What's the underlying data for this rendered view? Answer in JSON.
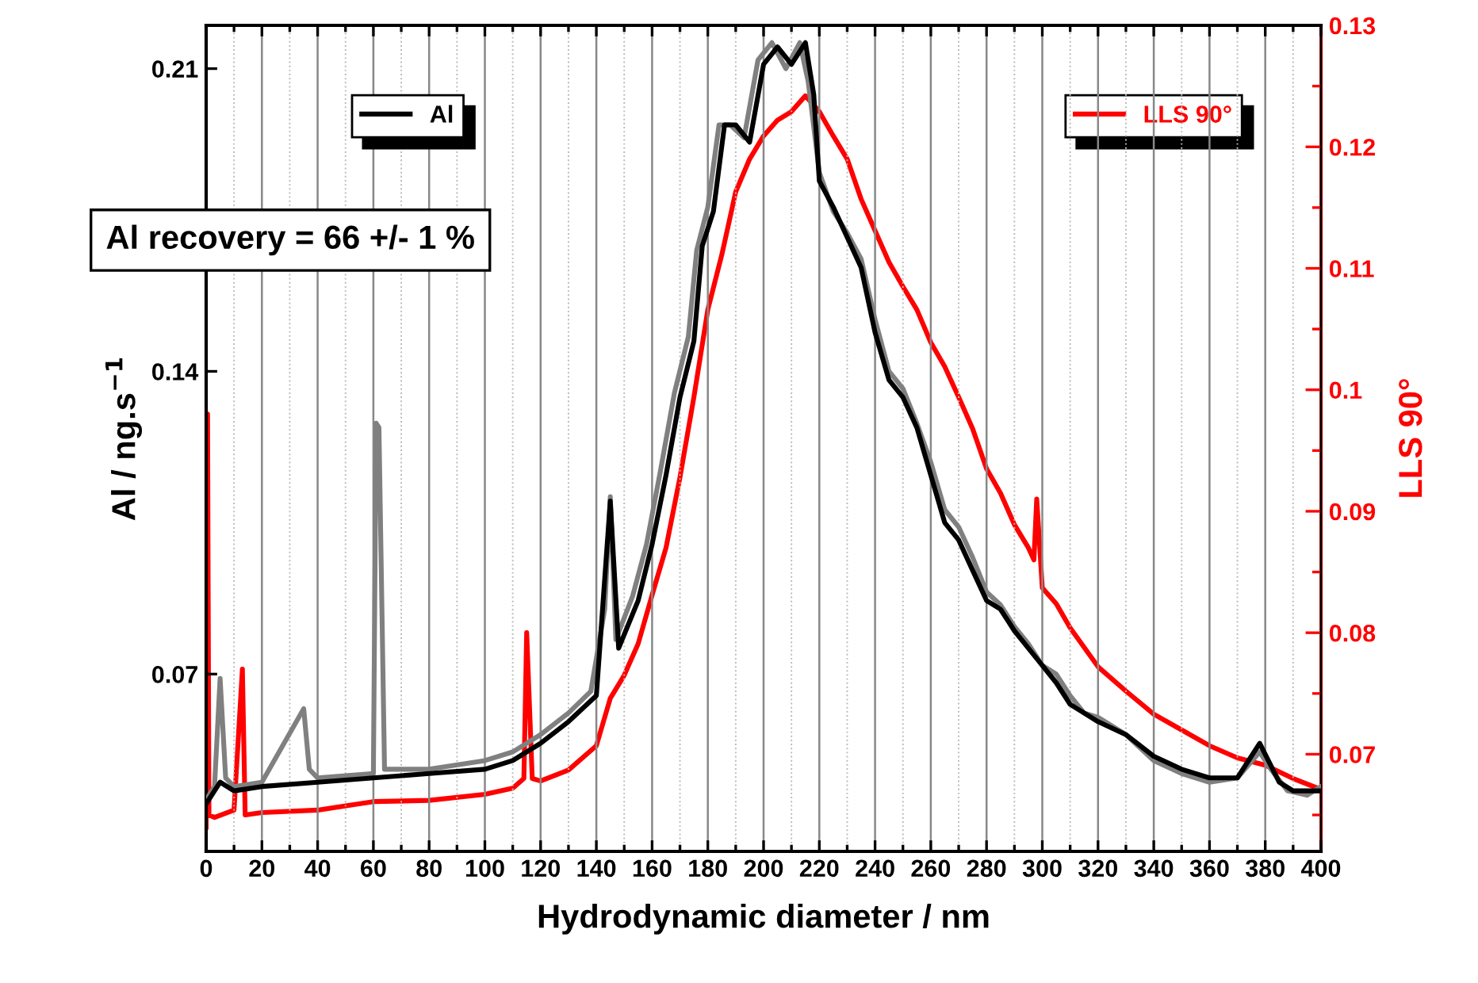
{
  "chart_data": {
    "type": "line",
    "xlabel": "Hydrodynamic diameter / nm",
    "ylabel": "Al / ng.s$^{−1}$",
    "y2label": "LLS 90°",
    "xlim": [
      0,
      400
    ],
    "ylim": [
      0.029,
      0.22
    ],
    "y2lim": [
      0.062,
      0.13
    ],
    "xticks": [
      0,
      {
        "value": 10,
        "label": null
      },
      20,
      {
        "value": 30,
        "label": null
      },
      40,
      {
        "value": 50,
        "label": null
      },
      60,
      {
        "value": 70,
        "label": null
      },
      80,
      {
        "value": 90,
        "label": null
      },
      100,
      {
        "value": 110,
        "label": null
      },
      120,
      {
        "value": 130,
        "label": null
      },
      140,
      {
        "value": 150,
        "label": null
      },
      160,
      {
        "value": 170,
        "label": null
      },
      180,
      {
        "value": 190,
        "label": null
      },
      200,
      {
        "value": 210,
        "label": null
      },
      220,
      {
        "value": 230,
        "label": null
      },
      240,
      {
        "value": 250,
        "label": null
      },
      260,
      {
        "value": 270,
        "label": null
      },
      280,
      {
        "value": 290,
        "label": null
      },
      300,
      {
        "value": 310,
        "label": null
      },
      320,
      {
        "value": 330,
        "label": null
      },
      340,
      {
        "value": 350,
        "label": null
      },
      360,
      {
        "value": 370,
        "label": null
      },
      380,
      {
        "value": 390,
        "label": null
      },
      400
    ],
    "yticks": [
      0.07,
      0.14,
      0.21
    ],
    "y2ticks": [
      {
        "value": 0.065,
        "label": null
      },
      0.07,
      {
        "value": 0.075,
        "label": null
      },
      0.08,
      {
        "value": 0.085,
        "label": null
      },
      0.09,
      {
        "value": 0.095,
        "label": null
      },
      0.1,
      {
        "value": 0.105,
        "label": null
      },
      0.11,
      {
        "value": 0.115,
        "label": null
      },
      0.12,
      {
        "value": 0.125,
        "label": null
      },
      0.13
    ],
    "grid": "x",
    "legend": "top",
    "line_style": "solid",
    "marker": "none",
    "annotations": [
      "Al recovery = 66 +/- 1 %"
    ],
    "series": [
      {
        "color": "#808080",
        "x": [
          0,
          3,
          5,
          7,
          10,
          20,
          35,
          37,
          40,
          60,
          61,
          62,
          64,
          80,
          100,
          110,
          120,
          130,
          138,
          143,
          145,
          147,
          153,
          158,
          163,
          168,
          173,
          176,
          180,
          184,
          188,
          193,
          198,
          203,
          208,
          213,
          216,
          220,
          225,
          230,
          235,
          240,
          245,
          250,
          255,
          260,
          265,
          270,
          275,
          280,
          285,
          290,
          295,
          300,
          305,
          310,
          315,
          320,
          330,
          340,
          350,
          360,
          370,
          378,
          382,
          388,
          395,
          400
        ],
        "values": [
          0.041,
          0.044,
          0.069,
          0.046,
          0.044,
          0.045,
          0.062,
          0.048,
          0.046,
          0.047,
          0.128,
          0.127,
          0.048,
          0.048,
          0.05,
          0.052,
          0.056,
          0.061,
          0.066,
          0.085,
          0.111,
          0.078,
          0.088,
          0.1,
          0.117,
          0.135,
          0.148,
          0.168,
          0.178,
          0.197,
          0.197,
          0.194,
          0.212,
          0.216,
          0.21,
          0.216,
          0.207,
          0.186,
          0.177,
          0.172,
          0.166,
          0.152,
          0.14,
          0.136,
          0.128,
          0.119,
          0.108,
          0.104,
          0.097,
          0.089,
          0.086,
          0.081,
          0.077,
          0.072,
          0.07,
          0.065,
          0.061,
          0.06,
          0.056,
          0.05,
          0.047,
          0.045,
          0.046,
          0.052,
          0.048,
          0.043,
          0.042,
          0.044
        ]
      },
      {
        "name": "Al",
        "color": "#000000",
        "x": [
          0,
          5,
          10,
          20,
          40,
          60,
          80,
          100,
          110,
          120,
          130,
          140,
          145,
          148,
          155,
          160,
          165,
          170,
          175,
          178,
          182,
          186,
          190,
          195,
          200,
          205,
          210,
          215,
          218,
          220,
          225,
          230,
          235,
          240,
          245,
          250,
          255,
          260,
          265,
          270,
          275,
          280,
          285,
          290,
          295,
          300,
          305,
          310,
          320,
          330,
          340,
          350,
          360,
          370,
          378,
          385,
          390,
          400
        ],
        "values": [
          0.04,
          0.045,
          0.043,
          0.044,
          0.045,
          0.046,
          0.047,
          0.048,
          0.05,
          0.054,
          0.059,
          0.065,
          0.11,
          0.076,
          0.087,
          0.1,
          0.116,
          0.134,
          0.147,
          0.169,
          0.177,
          0.197,
          0.197,
          0.193,
          0.211,
          0.215,
          0.211,
          0.216,
          0.204,
          0.184,
          0.178,
          0.171,
          0.164,
          0.149,
          0.138,
          0.134,
          0.127,
          0.116,
          0.105,
          0.101,
          0.094,
          0.087,
          0.085,
          0.08,
          0.076,
          0.072,
          0.068,
          0.063,
          0.059,
          0.056,
          0.051,
          0.048,
          0.046,
          0.046,
          0.054,
          0.045,
          0.043,
          0.043
        ]
      },
      {
        "name": "LLS 90°",
        "color": "#ff0000",
        "axis": "y2",
        "x": [
          0,
          0.5,
          1,
          3,
          10,
          13,
          14,
          20,
          40,
          60,
          80,
          100,
          110,
          114,
          115,
          117,
          120,
          130,
          140,
          145,
          150,
          155,
          160,
          165,
          170,
          175,
          180,
          185,
          190,
          195,
          200,
          205,
          210,
          215,
          220,
          225,
          230,
          235,
          240,
          245,
          250,
          255,
          260,
          265,
          270,
          275,
          280,
          285,
          290,
          295,
          297,
          298,
          300,
          305,
          310,
          320,
          330,
          340,
          350,
          360,
          370,
          380,
          390,
          400
        ],
        "values": [
          0.064,
          0.098,
          0.065,
          0.0648,
          0.0654,
          0.077,
          0.065,
          0.0652,
          0.0654,
          0.0661,
          0.0662,
          0.0667,
          0.0672,
          0.068,
          0.08,
          0.068,
          0.0678,
          0.0687,
          0.0707,
          0.0746,
          0.0765,
          0.0791,
          0.0831,
          0.087,
          0.0928,
          0.0994,
          0.1066,
          0.1111,
          0.1163,
          0.119,
          0.1209,
          0.1222,
          0.1229,
          0.1242,
          0.1229,
          0.1209,
          0.119,
          0.1157,
          0.1131,
          0.1105,
          0.1085,
          0.1066,
          0.1039,
          0.1019,
          0.0994,
          0.0968,
          0.0935,
          0.0915,
          0.0889,
          0.087,
          0.086,
          0.091,
          0.0837,
          0.0824,
          0.0804,
          0.0772,
          0.0752,
          0.0733,
          0.072,
          0.0707,
          0.0697,
          0.0691,
          0.068,
          0.0671
        ]
      }
    ]
  }
}
